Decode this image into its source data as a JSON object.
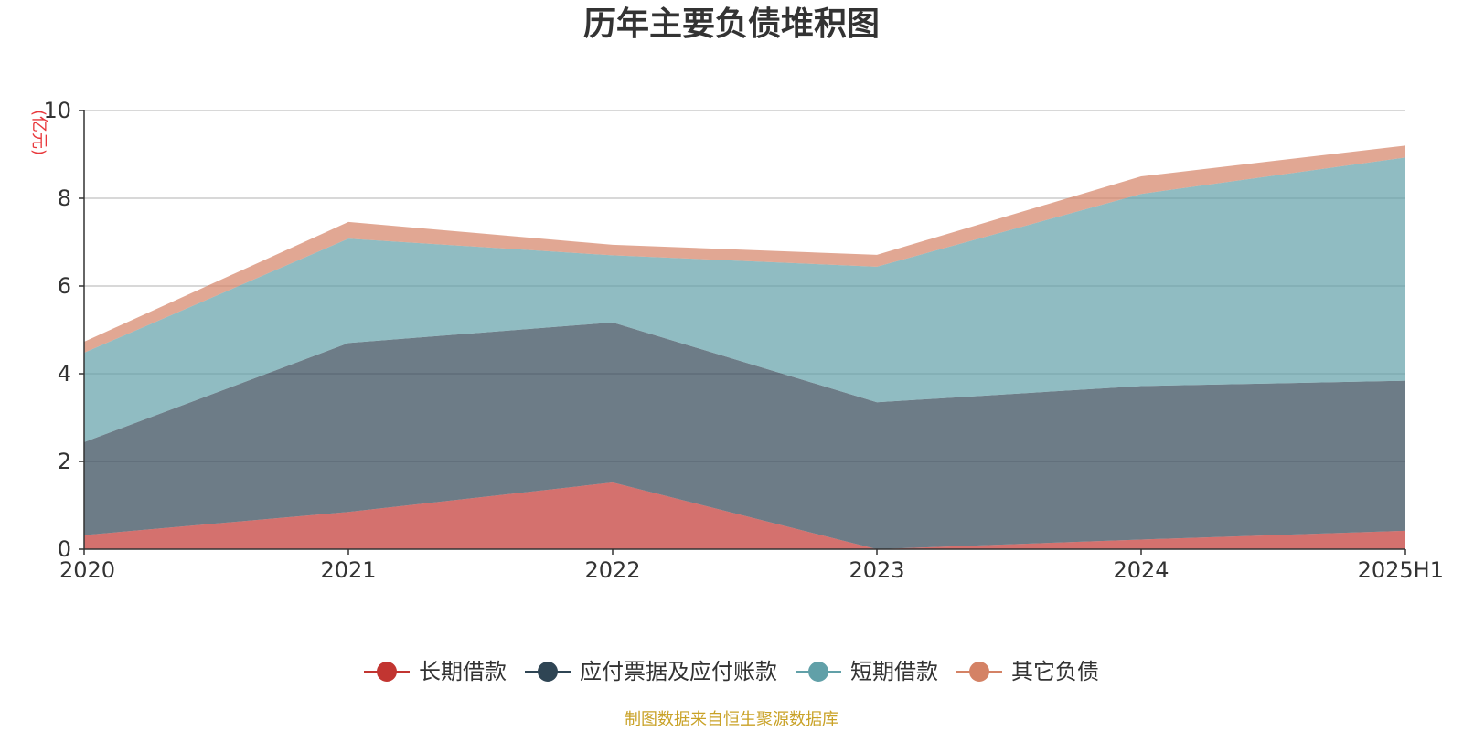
{
  "chart_data": {
    "type": "area",
    "stacked": true,
    "title": "历年主要负债堆积图",
    "ylabel": "(亿元)",
    "categories": [
      "2020",
      "2021",
      "2022",
      "2023",
      "2024",
      "2025H1"
    ],
    "ylim": [
      0,
      10
    ],
    "yticks": [
      0,
      2,
      4,
      6,
      8,
      10
    ],
    "ytick_labels": [
      "0",
      "2",
      "4",
      "6",
      "8",
      "10"
    ],
    "grid": true,
    "legend_position": "bottom",
    "series": [
      {
        "name": "长期借款",
        "color": "#c23531",
        "values": [
          0.32,
          0.85,
          1.52,
          0.0,
          0.22,
          0.42
        ]
      },
      {
        "name": "应付票据及应付账款",
        "color": "#2f4554",
        "values": [
          2.12,
          3.85,
          3.65,
          3.35,
          3.5,
          3.42
        ]
      },
      {
        "name": "短期借款",
        "color": "#61a0a8",
        "values": [
          2.04,
          2.38,
          1.53,
          3.09,
          4.38,
          5.09
        ]
      },
      {
        "name": "其它负债",
        "color": "#d48265",
        "values": [
          0.25,
          0.38,
          0.24,
          0.27,
          0.4,
          0.27
        ]
      }
    ],
    "source": "制图数据来自恒生聚源数据库"
  },
  "colors": {
    "unit_label": "#e8373b",
    "source_text": "#c9a227",
    "axis": "#333333",
    "grid": "#cccccc"
  }
}
